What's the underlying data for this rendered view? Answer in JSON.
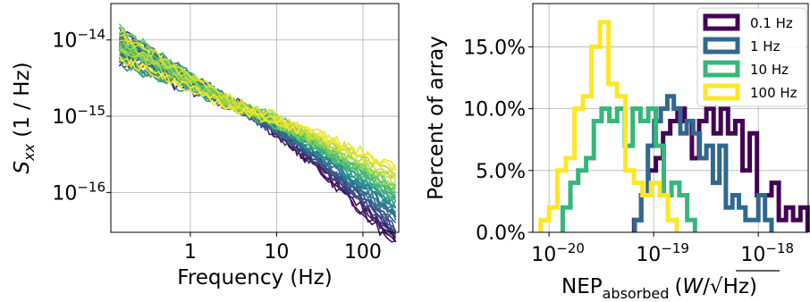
{
  "chart_data": [
    {
      "type": "line",
      "xlabel": "Frequency (Hz)",
      "ylabel_main": "S",
      "ylabel_sub": "xx",
      "ylabel_unit": " (1 / Hz)",
      "x_scale": "log",
      "y_scale": "log",
      "xlim": [
        0.12,
        260
      ],
      "ylim": [
        3e-17,
        3e-14
      ],
      "x_ticks": [
        {
          "value": 1,
          "label": "1"
        },
        {
          "value": 10,
          "label": "10"
        },
        {
          "value": 100,
          "label": "100"
        }
      ],
      "y_ticks": [
        {
          "value": 1e-14,
          "base": "10",
          "exp": "−14"
        },
        {
          "value": 1e-15,
          "base": "10",
          "exp": "−15"
        },
        {
          "value": 1e-16,
          "base": "10",
          "exp": "−16"
        }
      ],
      "grid": true,
      "colormap": [
        "#440154",
        "#3b528b",
        "#21918c",
        "#5ec962",
        "#fde725"
      ],
      "series_count": 40,
      "f_min": 0.15,
      "f_max": 240,
      "knee_hz": 3.5,
      "low_band": [
        5e-15,
        1.5e-14
      ],
      "mid_level": 1.3e-15,
      "high_band": [
        2e-17,
        2e-16
      ]
    },
    {
      "type": "histogram",
      "xlabel_main": "NEP",
      "xlabel_sub": "absorbed",
      "xlabel_unit_w": "W",
      "xlabel_unit_hz": "Hz",
      "ylabel": "Percent of array",
      "x_scale": "log",
      "xlim": [
        7e-21,
        3e-18
      ],
      "ylim": [
        0,
        18.5
      ],
      "x_ticks": [
        {
          "value": 1e-20,
          "base": "10",
          "exp": "−20"
        },
        {
          "value": 1e-19,
          "base": "10",
          "exp": "−19"
        },
        {
          "value": 1e-18,
          "base": "10",
          "exp": "−18"
        }
      ],
      "y_ticks": [
        {
          "value": 0,
          "label": "0.0%"
        },
        {
          "value": 5,
          "label": "5.0%"
        },
        {
          "value": 10,
          "label": "10.0%"
        },
        {
          "value": 15,
          "label": "15.0%"
        }
      ],
      "grid": true,
      "legend_position": "top-right",
      "series": [
        {
          "name": "0.1 Hz",
          "color": "#440154",
          "edges": [
            6.5e-20,
            7.6e-20,
            8.9e-20,
            1.05e-19,
            1.23e-19,
            1.44e-19,
            1.69e-19,
            1.98e-19,
            2.32e-19,
            2.72e-19,
            3.19e-19,
            3.74e-19,
            4.38e-19,
            5.14e-19,
            6.03e-19,
            7.07e-19,
            8.29e-19,
            9.72e-19,
            1.14e-18,
            1.34e-18,
            1.57e-18,
            1.84e-18,
            2.15e-18,
            2.53e-18,
            2.96e-18
          ],
          "values": [
            1,
            3,
            5,
            6,
            8,
            9,
            10,
            9,
            6,
            9,
            10,
            8,
            10,
            8,
            9,
            5,
            8,
            3,
            3,
            4,
            1,
            2,
            1,
            2
          ]
        },
        {
          "name": "1 Hz",
          "color": "#31688e",
          "edges": [
            6.6e-20,
            7.6e-20,
            8.8e-20,
            1.01e-19,
            1.17e-19,
            1.35e-19,
            1.56e-19,
            1.8e-19,
            2.07e-19,
            2.39e-19,
            2.76e-19,
            3.19e-19,
            3.68e-19,
            4.25e-19,
            4.9e-19,
            5.66e-19,
            6.53e-19,
            7.54e-19,
            8.7e-19,
            1e-18,
            1.16e-18,
            1.34e-18
          ],
          "values": [
            1,
            3,
            7,
            9,
            10,
            11,
            10,
            8,
            9,
            8,
            6,
            7,
            4,
            7,
            2,
            3,
            2,
            1,
            1,
            3,
            1
          ]
        },
        {
          "name": "10 Hz",
          "color": "#35b779",
          "edges": [
            1.35e-20,
            1.6e-20,
            1.9e-20,
            2.26e-20,
            2.68e-20,
            3.18e-20,
            3.77e-20,
            4.48e-20,
            5.31e-20,
            6.31e-20,
            7.48e-20,
            8.88e-20,
            1.05e-19,
            1.25e-19,
            1.48e-19,
            1.76e-19,
            2.09e-19,
            2.48e-19
          ],
          "values": [
            2,
            4,
            5,
            6,
            9,
            10,
            9,
            10,
            7,
            10,
            9,
            10,
            7,
            3,
            4,
            3,
            1
          ]
        },
        {
          "name": "100 Hz",
          "color": "#fde725",
          "edges": [
            8.3e-21,
            1e-20,
            1.2e-20,
            1.45e-20,
            1.75e-20,
            2.11e-20,
            2.54e-20,
            3.07e-20,
            3.7e-20,
            4.46e-20,
            5.38e-20,
            6.49e-20,
            7.83e-20,
            9.44e-20,
            1.14e-19,
            1.37e-19,
            1.66e-19
          ],
          "values": [
            1,
            2,
            5,
            6,
            10,
            11,
            15,
            17,
            12,
            11,
            5,
            4,
            3,
            4,
            3,
            1
          ]
        }
      ]
    }
  ]
}
